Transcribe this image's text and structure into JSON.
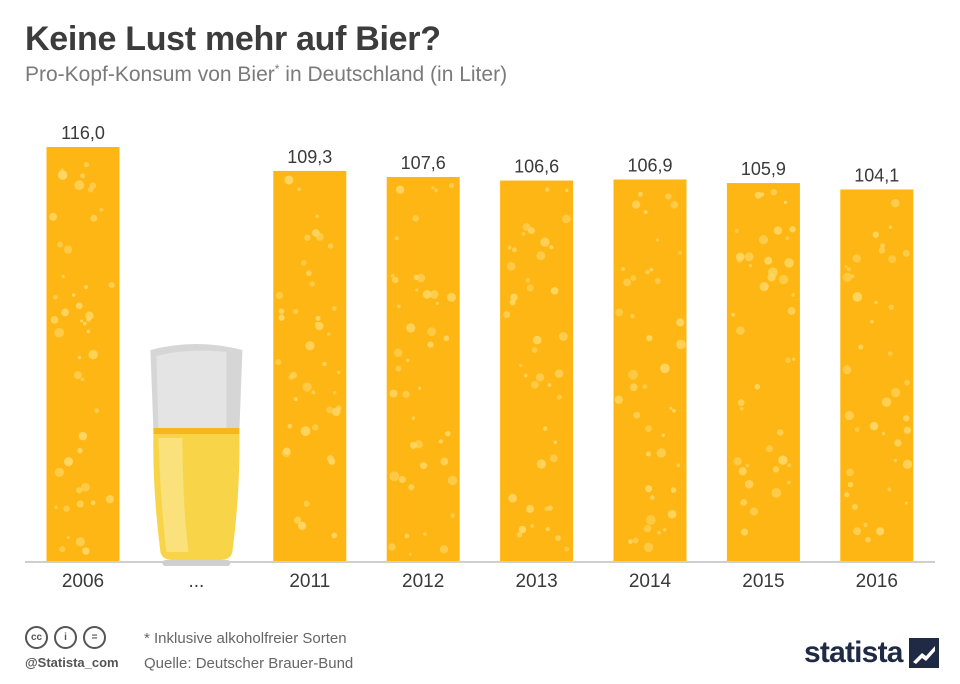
{
  "title": "Keine Lust mehr auf Bier?",
  "subtitle": "Pro-Kopf-Konsum von Bier",
  "subtitle_sup": "*",
  "subtitle_tail": " in Deutschland (in Liter)",
  "chart_data": {
    "type": "bar",
    "categories": [
      "2006",
      "...",
      "2011",
      "2012",
      "2013",
      "2014",
      "2015",
      "2016"
    ],
    "values": [
      116.0,
      null,
      109.3,
      107.6,
      106.6,
      106.9,
      105.9,
      104.1
    ],
    "value_labels": [
      "116,0",
      "",
      "109,3",
      "107,6",
      "106,6",
      "106,9",
      "105,9",
      "104,1"
    ],
    "title": "Keine Lust mehr auf Bier?",
    "xlabel": "",
    "ylabel": "",
    "ylim": [
      0,
      116
    ],
    "grid": false,
    "bar_color": "#FDB614",
    "gap_marker": "beer-glass"
  },
  "footer": {
    "note": "* Inklusive alkoholfreier Sorten",
    "source": "Quelle: Deutscher Brauer-Bund",
    "handle": "@Statista_com",
    "brand": "statista",
    "cc_icons": [
      "cc-icon",
      "by-icon",
      "nd-icon"
    ],
    "cc_glyphs": [
      "cc",
      "i",
      "="
    ]
  },
  "colors": {
    "bar": "#FDB614",
    "bubble": "#FFD766",
    "axis": "#cfcfcf",
    "text": "#3a3a3a"
  }
}
